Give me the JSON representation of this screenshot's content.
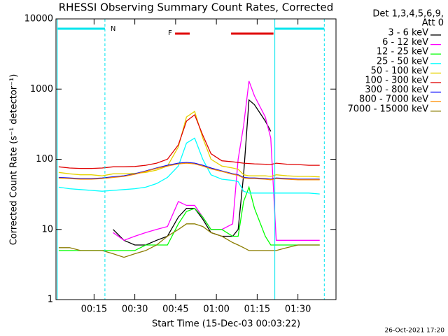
{
  "chart_data": {
    "type": "line",
    "title": "RHESSI Observing Summary Count Rates, Corrected",
    "x_label": "Start Time (15-Dec-03 00:03:22)",
    "y_label": "Corrected Count Rate (s⁻¹ detector⁻¹)",
    "legend_header": [
      "Det 1,3,4,5,6,9,",
      "Att 0"
    ],
    "footer": "26-Oct-2021 17:20",
    "log_y": true,
    "xlim": [
      1,
      104
    ],
    "ylim": [
      1,
      10000
    ],
    "xticks": [
      {
        "value": 15,
        "label": "00:15"
      },
      {
        "value": 30,
        "label": "00:30"
      },
      {
        "value": 45,
        "label": "00:45"
      },
      {
        "value": 60,
        "label": "01:00"
      },
      {
        "value": 75,
        "label": "01:15"
      },
      {
        "value": 90,
        "label": "01:30"
      }
    ],
    "yticks": [
      1,
      10,
      100,
      1000,
      10000
    ],
    "night_label": "N",
    "night_color": "#00e5ee",
    "night_intervals": [
      [
        1.5,
        19
      ],
      [
        81.5,
        99.7
      ]
    ],
    "flare_label": "F",
    "flare_color": "#e00000",
    "flare_intervals": [
      [
        44.8,
        50.2
      ],
      [
        65.4,
        81
      ]
    ],
    "x": [
      2,
      6,
      10,
      14,
      18,
      22,
      26,
      30,
      34,
      38,
      42,
      46,
      49,
      52,
      55,
      58,
      62,
      66,
      68,
      70,
      72,
      74,
      78,
      80,
      82,
      86,
      90,
      94,
      98
    ],
    "series": [
      {
        "name": "3 - 6 keV",
        "color": "#000000",
        "values": [
          null,
          null,
          null,
          null,
          null,
          10,
          7,
          6,
          6,
          7,
          8,
          15,
          20,
          20,
          14,
          9,
          8,
          8,
          10,
          60,
          700,
          600,
          350,
          250,
          null,
          null,
          null,
          null,
          null
        ]
      },
      {
        "name": "6 - 12 keV",
        "color": "#ff00ff",
        "values": [
          null,
          null,
          null,
          null,
          null,
          9,
          7,
          8,
          9,
          10,
          11,
          25,
          22,
          22,
          15,
          10,
          10,
          12,
          100,
          300,
          1300,
          800,
          400,
          200,
          7,
          7,
          7,
          7,
          7
        ]
      },
      {
        "name": "12 - 25 keV",
        "color": "#00ff00",
        "values": [
          5,
          5,
          5,
          5,
          5,
          5,
          5,
          5,
          6,
          6,
          6,
          12,
          18,
          20,
          15,
          10,
          10,
          8,
          8,
          25,
          40,
          20,
          8,
          6,
          6,
          6,
          6,
          6,
          6
        ]
      },
      {
        "name": "25 - 50 keV",
        "color": "#00ffff",
        "values": [
          40,
          38,
          37,
          36,
          35,
          36,
          37,
          38,
          40,
          45,
          55,
          80,
          170,
          200,
          100,
          60,
          52,
          50,
          48,
          35,
          33,
          33,
          33,
          33,
          33,
          33,
          33,
          33,
          32
        ]
      },
      {
        "name": "50 - 100 keV",
        "color": "#e6d200",
        "values": [
          65,
          62,
          60,
          60,
          58,
          62,
          62,
          63,
          65,
          70,
          80,
          150,
          400,
          480,
          200,
          100,
          80,
          75,
          72,
          60,
          58,
          58,
          58,
          57,
          60,
          58,
          57,
          57,
          56
        ]
      },
      {
        "name": "100 - 300 keV",
        "color": "#e00000",
        "values": [
          78,
          75,
          74,
          74,
          75,
          78,
          78,
          79,
          82,
          88,
          100,
          160,
          350,
          430,
          220,
          120,
          95,
          92,
          90,
          88,
          87,
          86,
          85,
          84,
          88,
          85,
          84,
          82,
          82
        ]
      },
      {
        "name": "300 - 800 keV",
        "color": "#0000ff",
        "values": [
          55,
          54,
          53,
          53,
          54,
          56,
          58,
          62,
          68,
          75,
          82,
          88,
          90,
          88,
          82,
          75,
          68,
          62,
          60,
          55,
          54,
          54,
          53,
          52,
          54,
          53,
          52,
          52,
          52
        ]
      },
      {
        "name": "800 - 7000 keV",
        "color": "#ff8c00",
        "values": [
          54,
          53,
          52,
          52,
          53,
          55,
          57,
          61,
          67,
          74,
          80,
          86,
          88,
          86,
          80,
          73,
          67,
          61,
          59,
          54,
          53,
          53,
          52,
          51,
          53,
          52,
          51,
          51,
          51
        ]
      },
      {
        "name": "7000 - 15000 keV",
        "color": "#8b7d00",
        "values": [
          5.5,
          5.5,
          5,
          5,
          5,
          4.5,
          4,
          4.5,
          5,
          6,
          8,
          10,
          12,
          12,
          11,
          9,
          8,
          6.5,
          6,
          5.5,
          5,
          5,
          5,
          5,
          5,
          5.5,
          6,
          6,
          6
        ]
      }
    ]
  }
}
